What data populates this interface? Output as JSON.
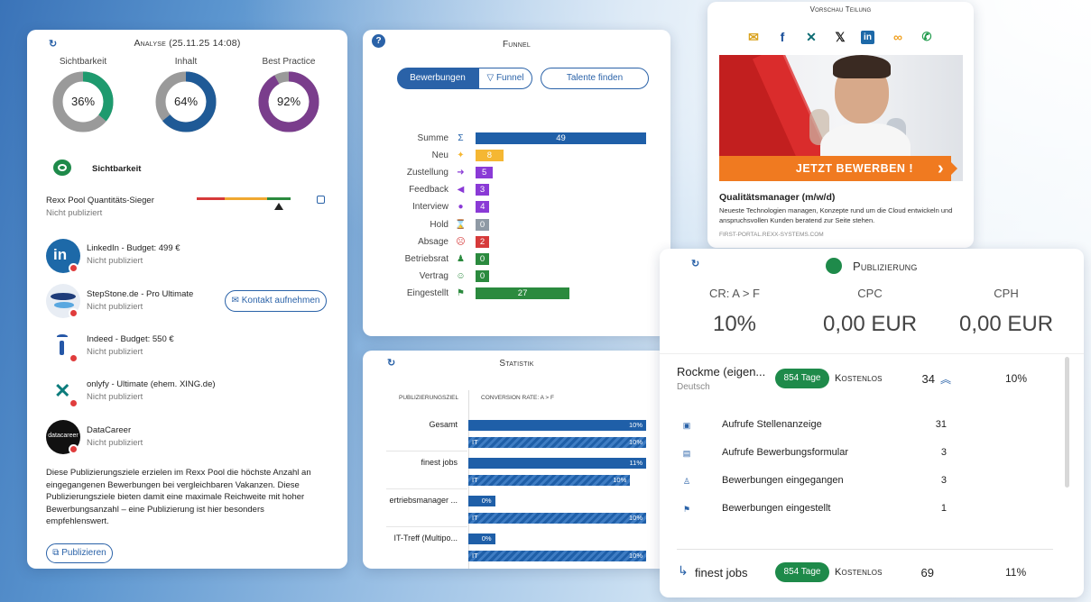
{
  "analyse": {
    "title": "Analyse (25.11.25 14:08)",
    "donuts": [
      {
        "label": "Sichtbarkeit",
        "value": "36%",
        "fraction": 0.36,
        "color": "#1e9a6e"
      },
      {
        "label": "Inhalt",
        "value": "64%",
        "fraction": 0.64,
        "color": "#1f5a96"
      },
      {
        "label": "Best Practice",
        "value": "92%",
        "fraction": 0.92,
        "color": "#7a3d8c"
      }
    ],
    "section_title": "Sichtbarkeit",
    "pool_title": "Rexx Pool Quantitäts-Sieger",
    "pool_status": "Nicht publiziert",
    "portals": [
      {
        "name": "LinkedIn - Budget: 499 €",
        "status": "Nicht publiziert",
        "logo": "linkedin-logo"
      },
      {
        "name": "StepStone.de - Pro Ultimate",
        "status": "Nicht publiziert",
        "logo": "stepstone-logo"
      },
      {
        "name": "Indeed - Budget: 550 €",
        "status": "Nicht publiziert",
        "logo": "indeed-logo"
      },
      {
        "name": "onlyfy - Ultimate (ehem. XING.de)",
        "status": "Nicht publiziert",
        "logo": "onlyfy-logo"
      },
      {
        "name": "DataCareer",
        "status": "Nicht publiziert",
        "logo": "datacareer-logo"
      }
    ],
    "contact_button": "Kontakt aufnehmen",
    "description": "Diese Publizierungsziele erzielen im Rexx Pool die höchste Anzahl an eingegangenen Bewerbungen bei vergleichbaren Vakanzen. Diese Publizierungsziele bieten damit eine maximale Reichweite mit hoher Bewerbungsanzahl – eine Publizierung ist hier besonders empfehlenswert.",
    "publish_button": "Publizieren",
    "datacareer_logo_text": "datacareer"
  },
  "funnel": {
    "title": "Funnel",
    "help_icon": "?",
    "tabs": [
      "Bewerbungen",
      "Funnel"
    ],
    "talent_button": "Talente finden",
    "rows": [
      {
        "label": "Summe",
        "value": 49,
        "color": "#1f5fa8",
        "icon": "sigma-icon",
        "glyph": "Σ"
      },
      {
        "label": "Neu",
        "value": 8,
        "color": "#f5b733",
        "icon": "sparkle-icon",
        "glyph": "✦"
      },
      {
        "label": "Zustellung",
        "value": 5,
        "color": "#8a3ad6",
        "icon": "arrow-icon",
        "glyph": "➜"
      },
      {
        "label": "Feedback",
        "value": 3,
        "color": "#8a3ad6",
        "icon": "reply-icon",
        "glyph": "◀"
      },
      {
        "label": "Interview",
        "value": 4,
        "color": "#8a3ad6",
        "icon": "chat-icon",
        "glyph": "●"
      },
      {
        "label": "Hold",
        "value": 0,
        "color": "#8f9aa5",
        "icon": "hourglass-icon",
        "glyph": "⌛"
      },
      {
        "label": "Absage",
        "value": 2,
        "color": "#d63a3a",
        "icon": "sad-icon",
        "glyph": "☹"
      },
      {
        "label": "Betriebsrat",
        "value": 0,
        "color": "#2b8a3e",
        "icon": "group-icon",
        "glyph": "♟"
      },
      {
        "label": "Vertrag",
        "value": 0,
        "color": "#2b8a3e",
        "icon": "smile-icon",
        "glyph": "☺"
      },
      {
        "label": "Eingestellt",
        "value": 27,
        "color": "#2b8a3e",
        "icon": "flag-icon",
        "glyph": "⚑"
      }
    ]
  },
  "statistik": {
    "title": "Statistik",
    "col1": "Publizierungsziel",
    "col2": "Conversion Rate: A > F",
    "rows": [
      {
        "label": "Gesamt",
        "main": "10%",
        "main_frac": 1.0,
        "it_label": "IT",
        "it": "10%",
        "it_frac": 1.0
      },
      {
        "label": "finest jobs",
        "main": "11%",
        "main_frac": 1.0,
        "it_label": "IT",
        "it": "10%",
        "it_frac": 0.91
      },
      {
        "label": "ertriebsmanager ...",
        "main": "0%",
        "main_frac": 0.15,
        "it_label": "IT",
        "it": "10%",
        "it_frac": 1.0
      },
      {
        "label": "IT-Treff (Multipo...",
        "main": "0%",
        "main_frac": 0.15,
        "it_label": "IT",
        "it": "10%",
        "it_frac": 1.0
      }
    ]
  },
  "vorschau": {
    "title": "Vorschau Teilung",
    "share_icons": [
      "mail-icon",
      "facebook-icon",
      "xing-icon",
      "x-icon",
      "linkedin-icon",
      "link-icon",
      "whatsapp-icon"
    ],
    "share_glyphs": [
      "✉",
      "f",
      "✕",
      "𝕏",
      "in",
      "∞",
      "✆"
    ],
    "cta": "JETZT BEWERBEN !",
    "job_title": "Qualitätsmanager (m/w/d)",
    "job_text": "Neueste Technologien managen, Konzepte rund um die Cloud entwickeln und anspruchsvollen Kunden beratend zur Seite stehen.",
    "url": "FIRST-PORTAL.REXX-SYSTEMS.COM"
  },
  "publizierung": {
    "title": "Publizierung",
    "kpis": [
      {
        "label": "CR: A > F",
        "value": "10%"
      },
      {
        "label": "CPC",
        "value": "0,00 EUR"
      },
      {
        "label": "CPH",
        "value": "0,00 EUR"
      }
    ],
    "entry1": {
      "name": "Rockme (eigen...",
      "lang": "Deutsch",
      "days": "854 Tage",
      "cost": "Kostenlos",
      "count": "34",
      "rate": "10%"
    },
    "metrics": [
      {
        "label": "Aufrufe Stellenanzeige",
        "value": "31",
        "icon": "ad-icon"
      },
      {
        "label": "Aufrufe Bewerbungsformular",
        "value": "3",
        "icon": "document-icon"
      },
      {
        "label": "Bewerbungen eingegangen",
        "value": "3",
        "icon": "person-icon"
      },
      {
        "label": "Bewerbungen eingestellt",
        "value": "1",
        "icon": "flag-icon"
      }
    ],
    "entry2": {
      "name": "finest jobs",
      "days": "854 Tage",
      "cost": "Kostenlos",
      "count": "69",
      "rate": "11%"
    }
  }
}
